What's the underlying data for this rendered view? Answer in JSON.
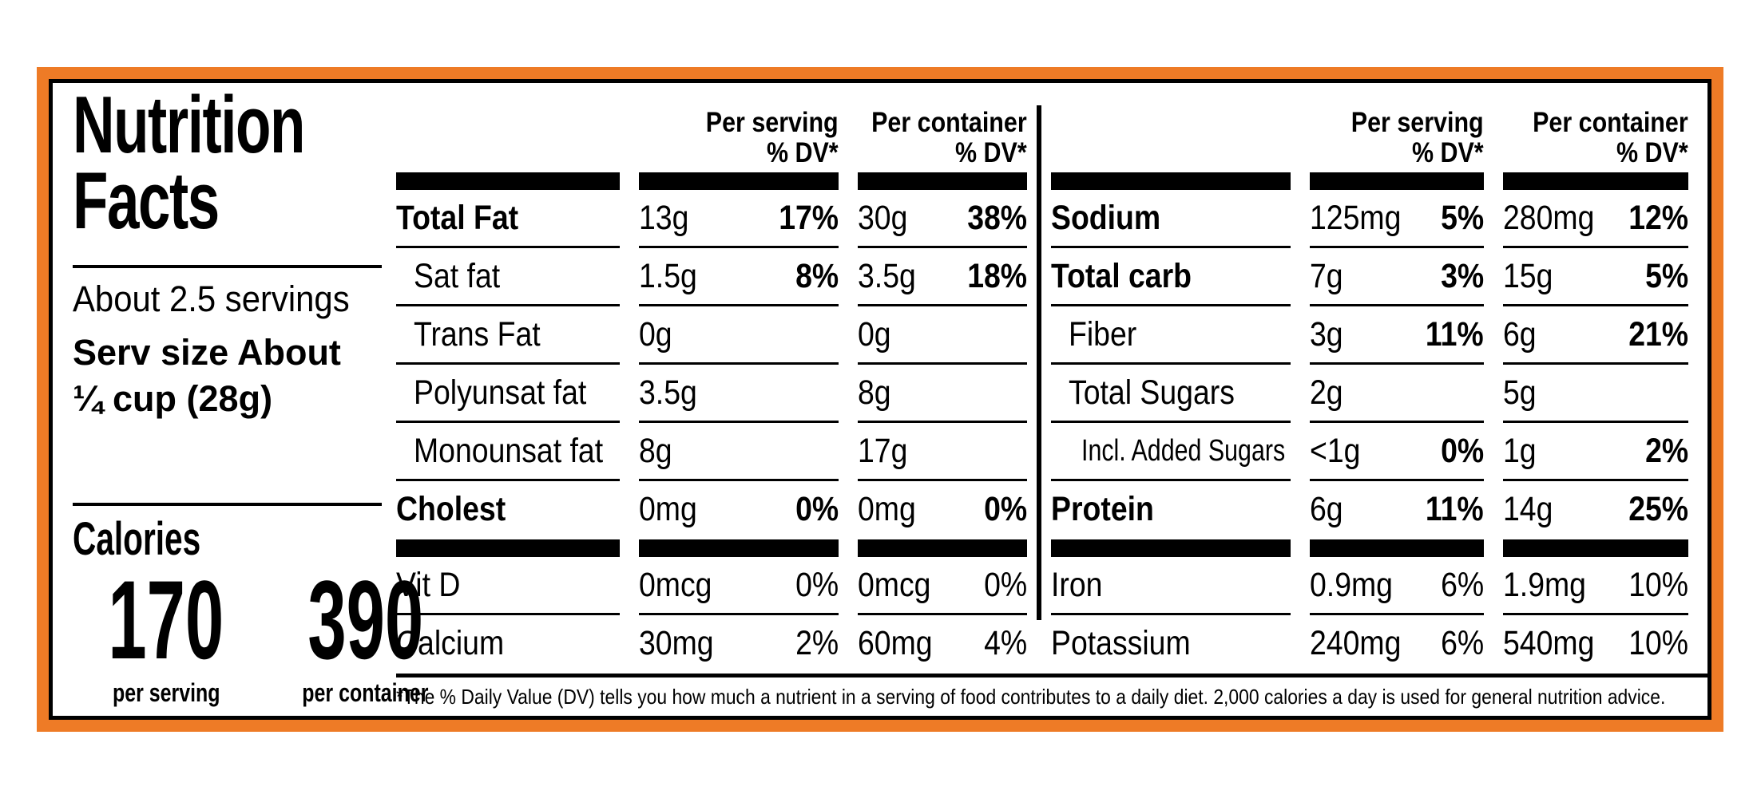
{
  "colors": {
    "accent": "#EE7B26",
    "ink": "#000000",
    "paper": "#FFFFFF"
  },
  "title": {
    "line1": "Nutrition",
    "line2": "Facts"
  },
  "servings_text": "About 2.5 servings",
  "serving_size": {
    "line1": "Serv size About",
    "line2": "¼ cup (28g)"
  },
  "calories": {
    "word": "Calories",
    "per_serving": {
      "value": "170",
      "caption": "per serving"
    },
    "per_container": {
      "value": "390",
      "caption": "per container"
    }
  },
  "column_headers": {
    "per_serving": "Per serving",
    "per_container": "Per container",
    "dv": "% DV*"
  },
  "nutrient_table_left": {
    "rows": [
      {
        "label": "Total Fat",
        "serving_amount": "13g",
        "serving_dv": "17%",
        "container_amount": "30g",
        "container_dv": "38%"
      },
      {
        "label": "Sat fat",
        "serving_amount": "1.5g",
        "serving_dv": "8%",
        "container_amount": "3.5g",
        "container_dv": "18%"
      },
      {
        "label": "Trans Fat",
        "serving_amount": "0g",
        "serving_dv": "",
        "container_amount": "0g",
        "container_dv": ""
      },
      {
        "label": "Polyunsat fat",
        "serving_amount": "3.5g",
        "serving_dv": "",
        "container_amount": "8g",
        "container_dv": ""
      },
      {
        "label": "Monounsat fat",
        "serving_amount": "8g",
        "serving_dv": "",
        "container_amount": "17g",
        "container_dv": ""
      },
      {
        "label": "Cholest",
        "serving_amount": "0mg",
        "serving_dv": "0%",
        "container_amount": "0mg",
        "container_dv": "0%"
      },
      {
        "label": "Vit D",
        "serving_amount": "0mcg",
        "serving_dv": "0%",
        "container_amount": "0mcg",
        "container_dv": "0%"
      },
      {
        "label": "Calcium",
        "serving_amount": "30mg",
        "serving_dv": "2%",
        "container_amount": "60mg",
        "container_dv": "4%"
      }
    ]
  },
  "nutrient_table_right": {
    "rows": [
      {
        "label": "Sodium",
        "serving_amount": "125mg",
        "serving_dv": "5%",
        "container_amount": "280mg",
        "container_dv": "12%"
      },
      {
        "label": "Total carb",
        "serving_amount": "7g",
        "serving_dv": "3%",
        "container_amount": "15g",
        "container_dv": "5%"
      },
      {
        "label": "Fiber",
        "serving_amount": "3g",
        "serving_dv": "11%",
        "container_amount": "6g",
        "container_dv": "21%"
      },
      {
        "label": "Total Sugars",
        "serving_amount": "2g",
        "serving_dv": "",
        "container_amount": "5g",
        "container_dv": ""
      },
      {
        "label": "Incl. Added Sugars",
        "serving_amount": "<1g",
        "serving_dv": "0%",
        "container_amount": "1g",
        "container_dv": "2%"
      },
      {
        "label": "Protein",
        "serving_amount": "6g",
        "serving_dv": "11%",
        "container_amount": "14g",
        "container_dv": "25%"
      },
      {
        "label": "Iron",
        "serving_amount": "0.9mg",
        "serving_dv": "6%",
        "container_amount": "1.9mg",
        "container_dv": "10%"
      },
      {
        "label": "Potassium",
        "serving_amount": "240mg",
        "serving_dv": "6%",
        "container_amount": "540mg",
        "container_dv": "10%"
      }
    ]
  },
  "footnote": "*The % Daily Value (DV) tells you how much a nutrient in a serving of food contributes to a daily diet. 2,000 calories a day is used for general nutrition advice."
}
